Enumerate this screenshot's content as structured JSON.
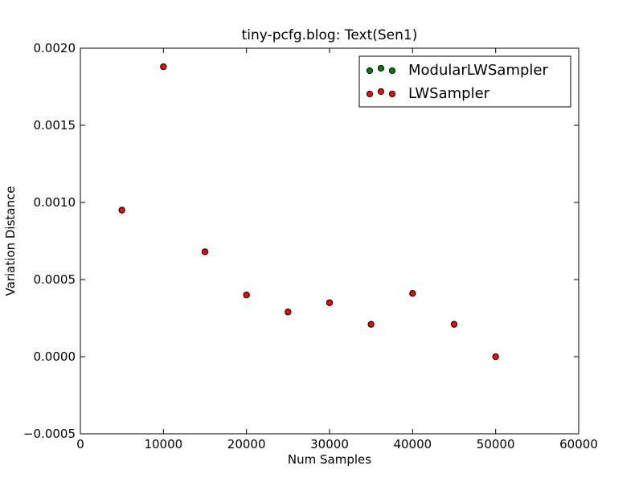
{
  "chart_data": {
    "type": "scatter",
    "title": "tiny-pcfg.blog: Text(Sen1)",
    "xlabel": "Num Samples",
    "ylabel": "Variation Distance",
    "xlim": [
      0,
      60000
    ],
    "ylim": [
      -0.0005,
      0.002
    ],
    "x_ticks": [
      0,
      10000,
      20000,
      30000,
      40000,
      50000,
      60000
    ],
    "x_tick_labels": [
      "0",
      "10000",
      "20000",
      "30000",
      "40000",
      "50000",
      "60000"
    ],
    "y_ticks": [
      -0.0005,
      0.0,
      0.0005,
      0.001,
      0.0015,
      0.002
    ],
    "y_tick_labels": [
      "−0.0005",
      "0.0000",
      "0.0005",
      "0.0010",
      "0.0015",
      "0.0020"
    ],
    "grid": false,
    "legend_position": "top-right",
    "series": [
      {
        "name": "ModularLWSampler",
        "color": "#008000",
        "x": [
          5000,
          10000,
          15000,
          20000,
          25000,
          30000,
          35000,
          40000,
          45000,
          50000
        ],
        "y": [
          0.00095,
          0.00188,
          0.00068,
          0.0004,
          0.00029,
          0.00035,
          0.00021,
          0.00041,
          0.00021,
          0.0
        ]
      },
      {
        "name": "LWSampler",
        "color": "#ff0000",
        "x": [
          5000,
          10000,
          15000,
          20000,
          25000,
          30000,
          35000,
          40000,
          45000,
          50000
        ],
        "y": [
          0.00095,
          0.00188,
          0.00068,
          0.0004,
          0.00029,
          0.00035,
          0.00021,
          0.00041,
          0.00021,
          0.0
        ]
      }
    ]
  }
}
